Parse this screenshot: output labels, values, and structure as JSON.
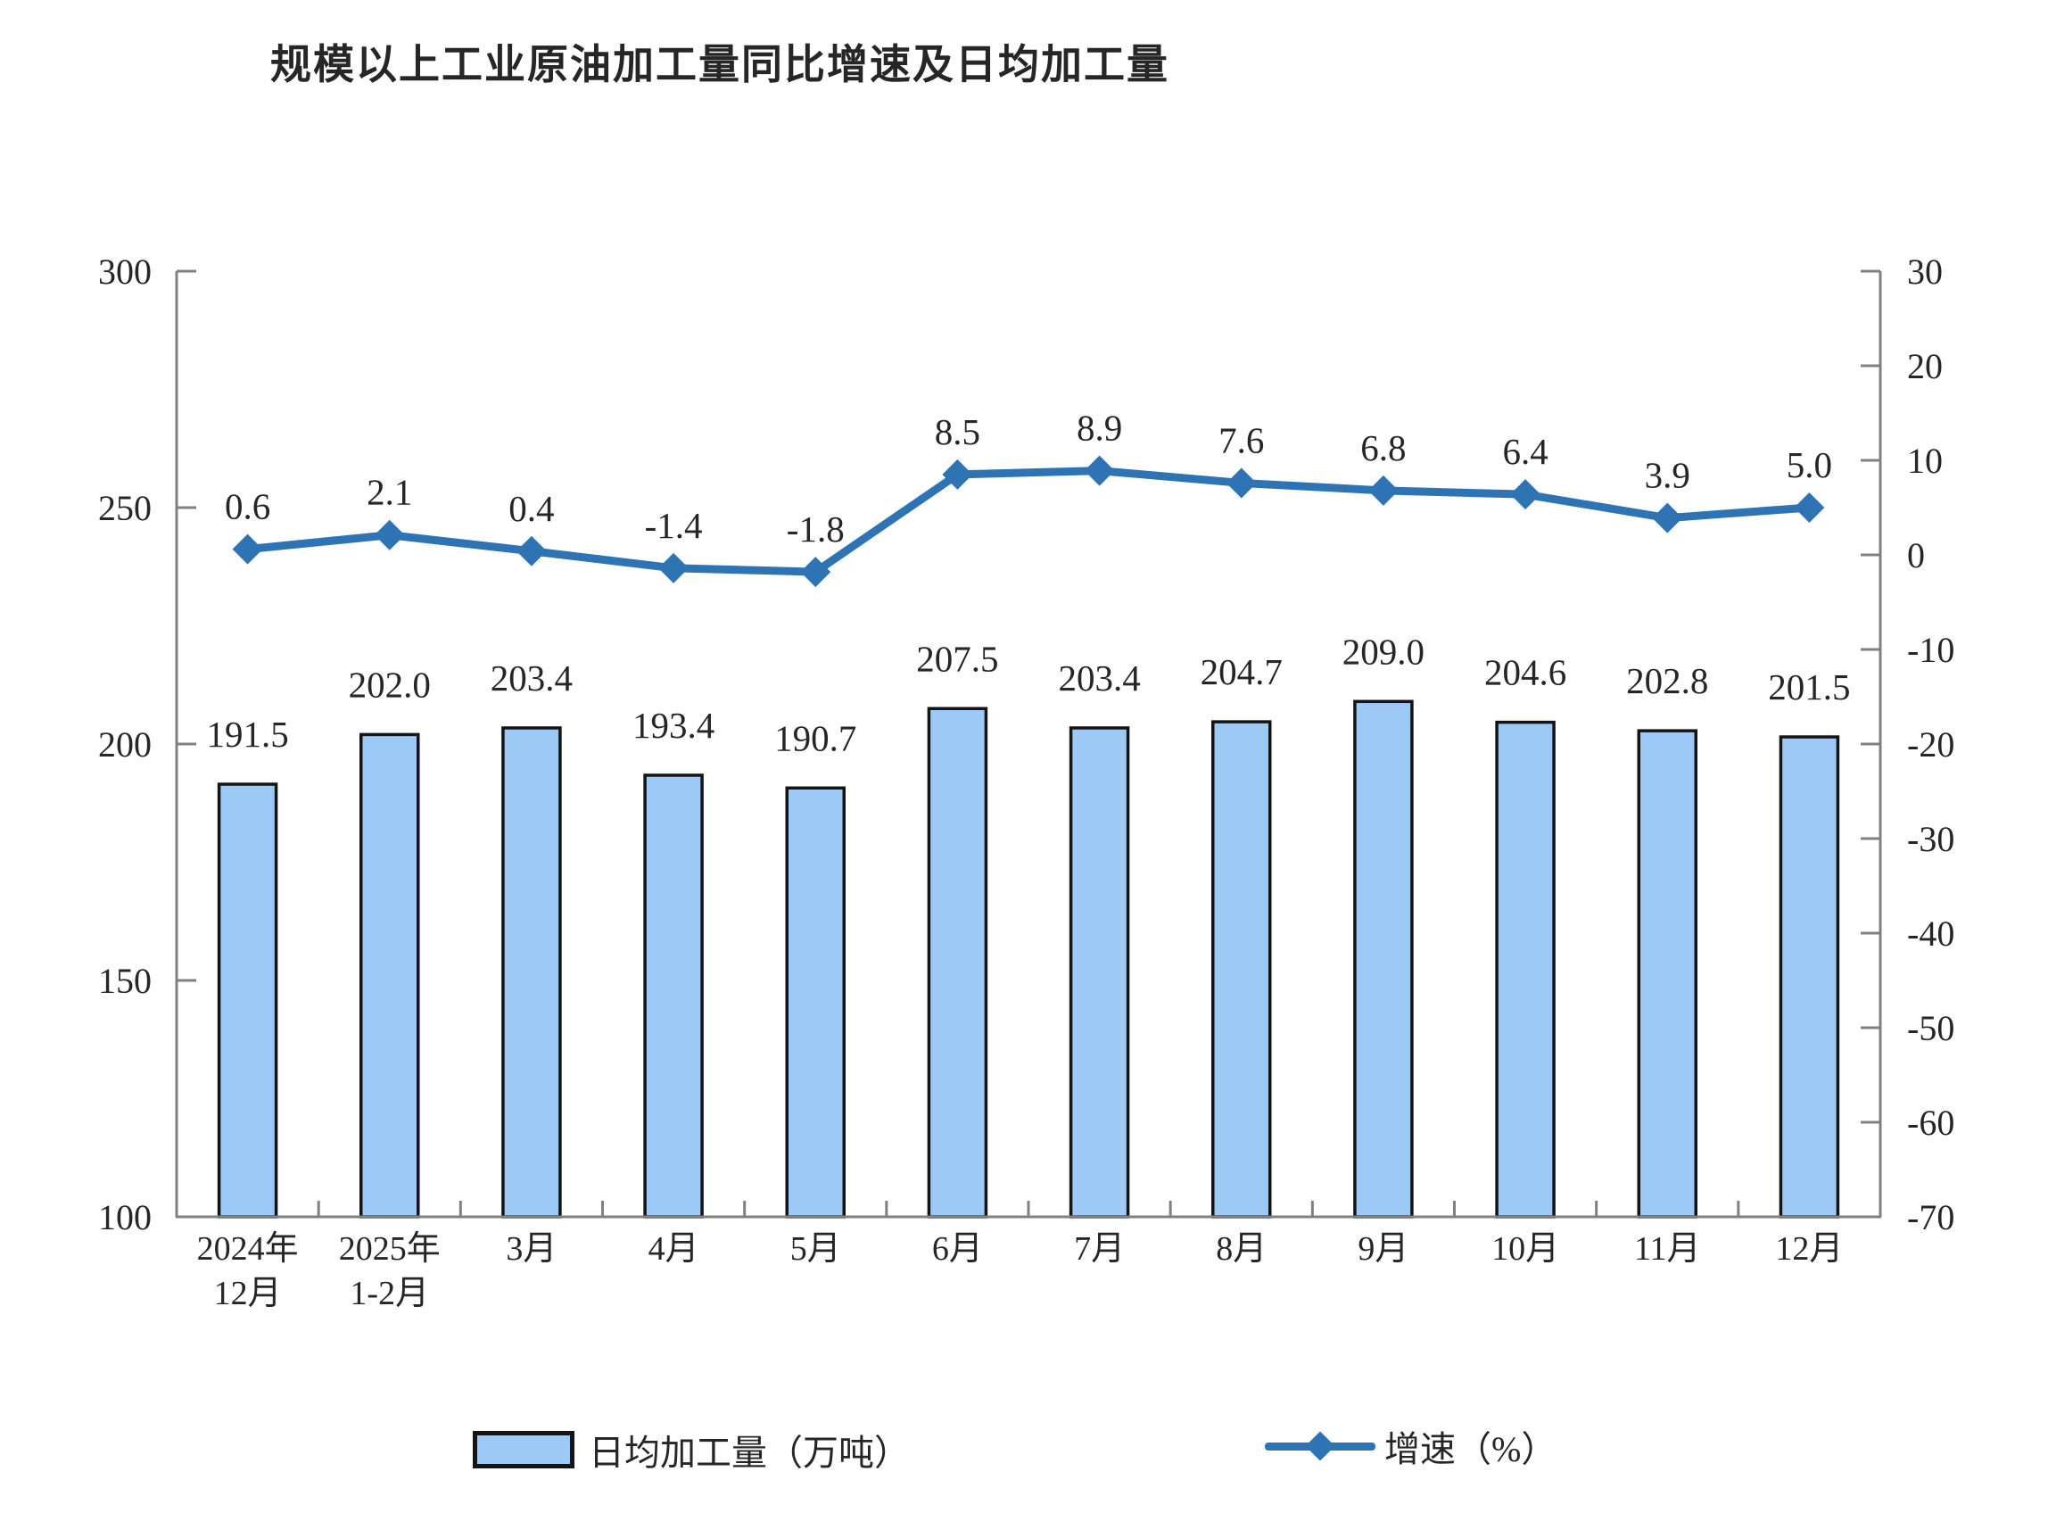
{
  "title": "规模以上工业原油加工量同比增速及日均加工量",
  "legend": {
    "bar_label": "日均加工量（万吨）",
    "line_label": "增速（%）"
  },
  "colors": {
    "bar_fill": "#9CC9F5",
    "bar_border": "#141414",
    "line": "#2E74B5",
    "axis": "#808080",
    "text": "#262626"
  },
  "chart_data": {
    "type": "bar",
    "subtype": "combo bar+line, dual axis",
    "title": "规模以上工业原油加工量同比增速及日均加工量",
    "categories": [
      [
        "2024年",
        "12月"
      ],
      [
        "2025年",
        "1-2月"
      ],
      [
        "3月"
      ],
      [
        "4月"
      ],
      [
        "5月"
      ],
      [
        "6月"
      ],
      [
        "7月"
      ],
      [
        "8月"
      ],
      [
        "9月"
      ],
      [
        "10月"
      ],
      [
        "11月"
      ],
      [
        "12月"
      ]
    ],
    "series": [
      {
        "name": "日均加工量（万吨）",
        "type": "bar",
        "axis": "left",
        "values": [
          191.5,
          202.0,
          203.4,
          193.4,
          190.7,
          207.5,
          203.4,
          204.7,
          209.0,
          204.6,
          202.8,
          201.5
        ]
      },
      {
        "name": "增速（%）",
        "type": "line",
        "axis": "right",
        "values": [
          0.6,
          2.1,
          0.4,
          -1.4,
          -1.8,
          8.5,
          8.9,
          7.6,
          6.8,
          6.4,
          3.9,
          5.0
        ]
      }
    ],
    "left_axis": {
      "min": 100,
      "max": 300,
      "ticks": [
        300,
        250,
        200,
        150,
        100
      ]
    },
    "right_axis": {
      "min": -70,
      "max": 30,
      "ticks": [
        30,
        20,
        10,
        0,
        -10,
        -20,
        -30,
        -40,
        -50,
        -60,
        -70
      ]
    },
    "grid": false,
    "data_labels": true,
    "label_decimals": 1,
    "legend_position": "bottom"
  }
}
